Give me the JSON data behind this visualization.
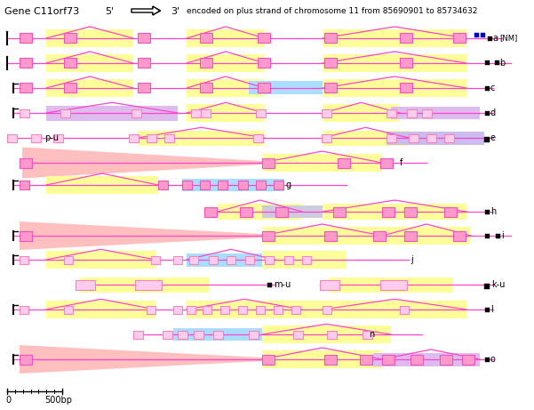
{
  "fig_w": 6.01,
  "fig_h": 4.61,
  "dpi": 100,
  "bg": "#ffffff",
  "yellow": "#ffff99",
  "pink": "#ff99cc",
  "lpink": "#ffccee",
  "salmon": "#ffaaaa",
  "blue": "#aaddff",
  "purple": "#ccbbee",
  "lilac": "#ddbbee",
  "mg": "#ff44cc",
  "black": "#000000",
  "header": "Gene C11orf73",
  "info": "encoded on plus strand of chromosome 11 from 85690901 to 85734632",
  "scale_label": "500bp"
}
